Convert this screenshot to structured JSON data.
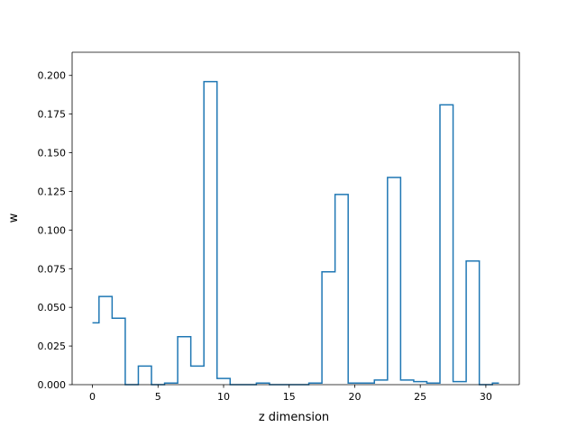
{
  "chart_data": {
    "type": "step",
    "step_where": "mid",
    "title": "",
    "xlabel": "z dimension",
    "ylabel": "w",
    "xlim": [
      -1.55,
      32.55
    ],
    "ylim": [
      0.0,
      0.215
    ],
    "xticks": [
      0,
      5,
      10,
      15,
      20,
      25,
      30
    ],
    "xtick_labels": [
      "0",
      "5",
      "10",
      "15",
      "20",
      "25",
      "30"
    ],
    "yticks": [
      0.0,
      0.025,
      0.05,
      0.075,
      0.1,
      0.125,
      0.15,
      0.175,
      0.2
    ],
    "ytick_labels": [
      "0.000",
      "0.025",
      "0.050",
      "0.075",
      "0.100",
      "0.125",
      "0.150",
      "0.175",
      "0.200"
    ],
    "grid": false,
    "legend": false,
    "line_color": "#1f77b4",
    "series": [
      {
        "x": [
          0,
          1,
          2,
          3,
          4,
          5,
          6,
          7,
          8,
          9,
          10,
          11,
          12,
          13,
          14,
          15,
          16,
          17,
          18,
          19,
          20,
          21,
          22,
          23,
          24,
          25,
          26,
          27,
          28,
          29,
          30,
          31
        ],
        "values": [
          0.04,
          0.057,
          0.043,
          0.0,
          0.012,
          0.0,
          0.001,
          0.031,
          0.012,
          0.196,
          0.004,
          0.0,
          0.0,
          0.001,
          0.0,
          0.0,
          0.0,
          0.001,
          0.073,
          0.123,
          0.001,
          0.001,
          0.003,
          0.134,
          0.003,
          0.002,
          0.001,
          0.181,
          0.002,
          0.08,
          0.0,
          0.001
        ]
      }
    ]
  }
}
